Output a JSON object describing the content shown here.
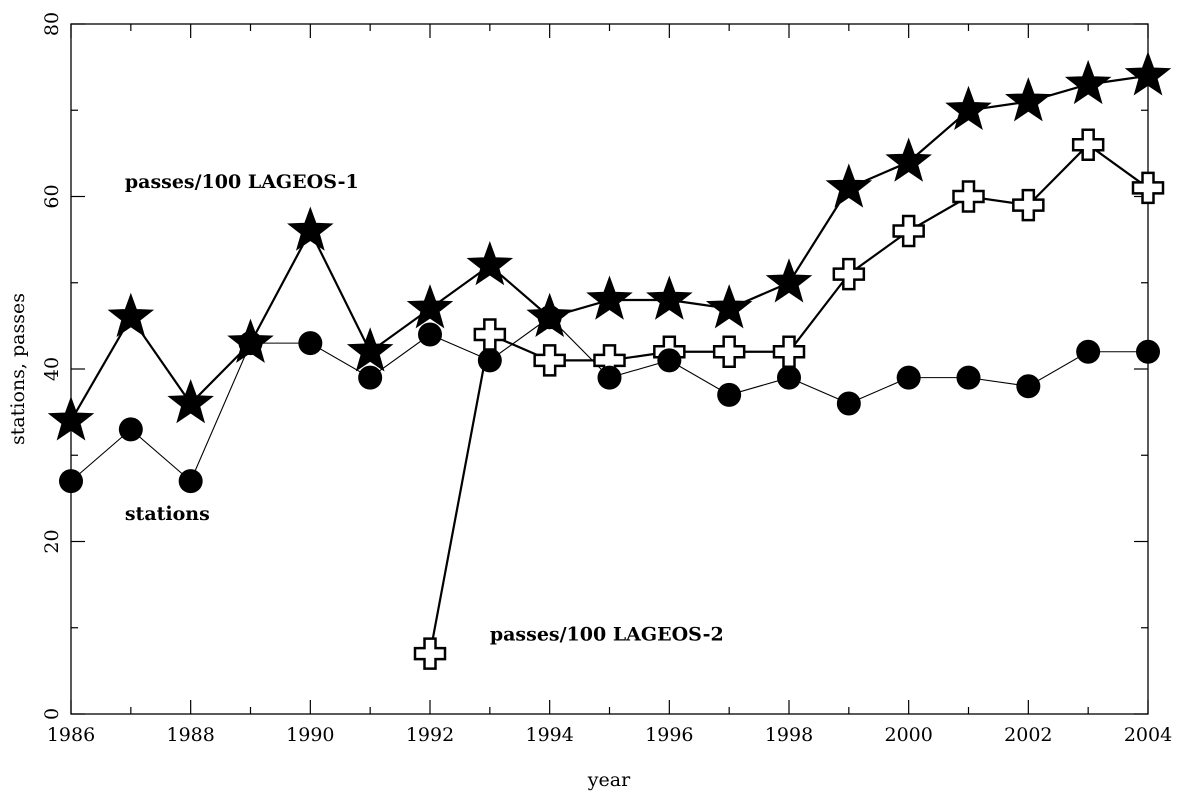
{
  "chart_data": {
    "type": "line",
    "xlabel": "year",
    "ylabel": "stations, passes",
    "xlim": [
      1986,
      2004
    ],
    "ylim": [
      0,
      80
    ],
    "x_ticks": [
      1986,
      1988,
      1990,
      1992,
      1994,
      1996,
      1998,
      2000,
      2002,
      2004
    ],
    "y_ticks": [
      0,
      20,
      40,
      60,
      80
    ],
    "grid": false,
    "series": [
      {
        "name": "passes/100 LAGEOS-1",
        "marker": "star",
        "x": [
          1986,
          1987,
          1988,
          1989,
          1990,
          1991,
          1992,
          1993,
          1994,
          1995,
          1996,
          1997,
          1998,
          1999,
          2000,
          2001,
          2002,
          2003,
          2004
        ],
        "values": [
          34,
          46,
          36,
          43,
          56,
          42,
          47,
          52,
          46,
          48,
          48,
          47,
          50,
          61,
          64,
          70,
          71,
          73,
          74
        ]
      },
      {
        "name": "stations",
        "marker": "circle",
        "x": [
          1986,
          1987,
          1988,
          1989,
          1990,
          1991,
          1992,
          1993,
          1994,
          1995,
          1996,
          1997,
          1998,
          1999,
          2000,
          2001,
          2002,
          2003,
          2004
        ],
        "values": [
          27,
          33,
          27,
          43,
          43,
          39,
          44,
          41,
          46,
          39,
          41,
          37,
          39,
          36,
          39,
          39,
          38,
          42,
          42
        ]
      },
      {
        "name": "passes/100 LAGEOS-2",
        "marker": "cross",
        "x": [
          1992,
          1993,
          1994,
          1995,
          1996,
          1997,
          1998,
          1999,
          2000,
          2001,
          2002,
          2003,
          2004
        ],
        "values": [
          7,
          44,
          41,
          41,
          42,
          42,
          42,
          51,
          56,
          60,
          59,
          66,
          61
        ]
      }
    ],
    "annotations": [
      {
        "text": "passes/100 LAGEOS-1",
        "at": [
          1986.9,
          61
        ]
      },
      {
        "text": "stations",
        "at": [
          1986.9,
          22.5
        ]
      },
      {
        "text": "passes/100 LAGEOS-2",
        "at": [
          1993,
          8.5
        ]
      }
    ]
  }
}
